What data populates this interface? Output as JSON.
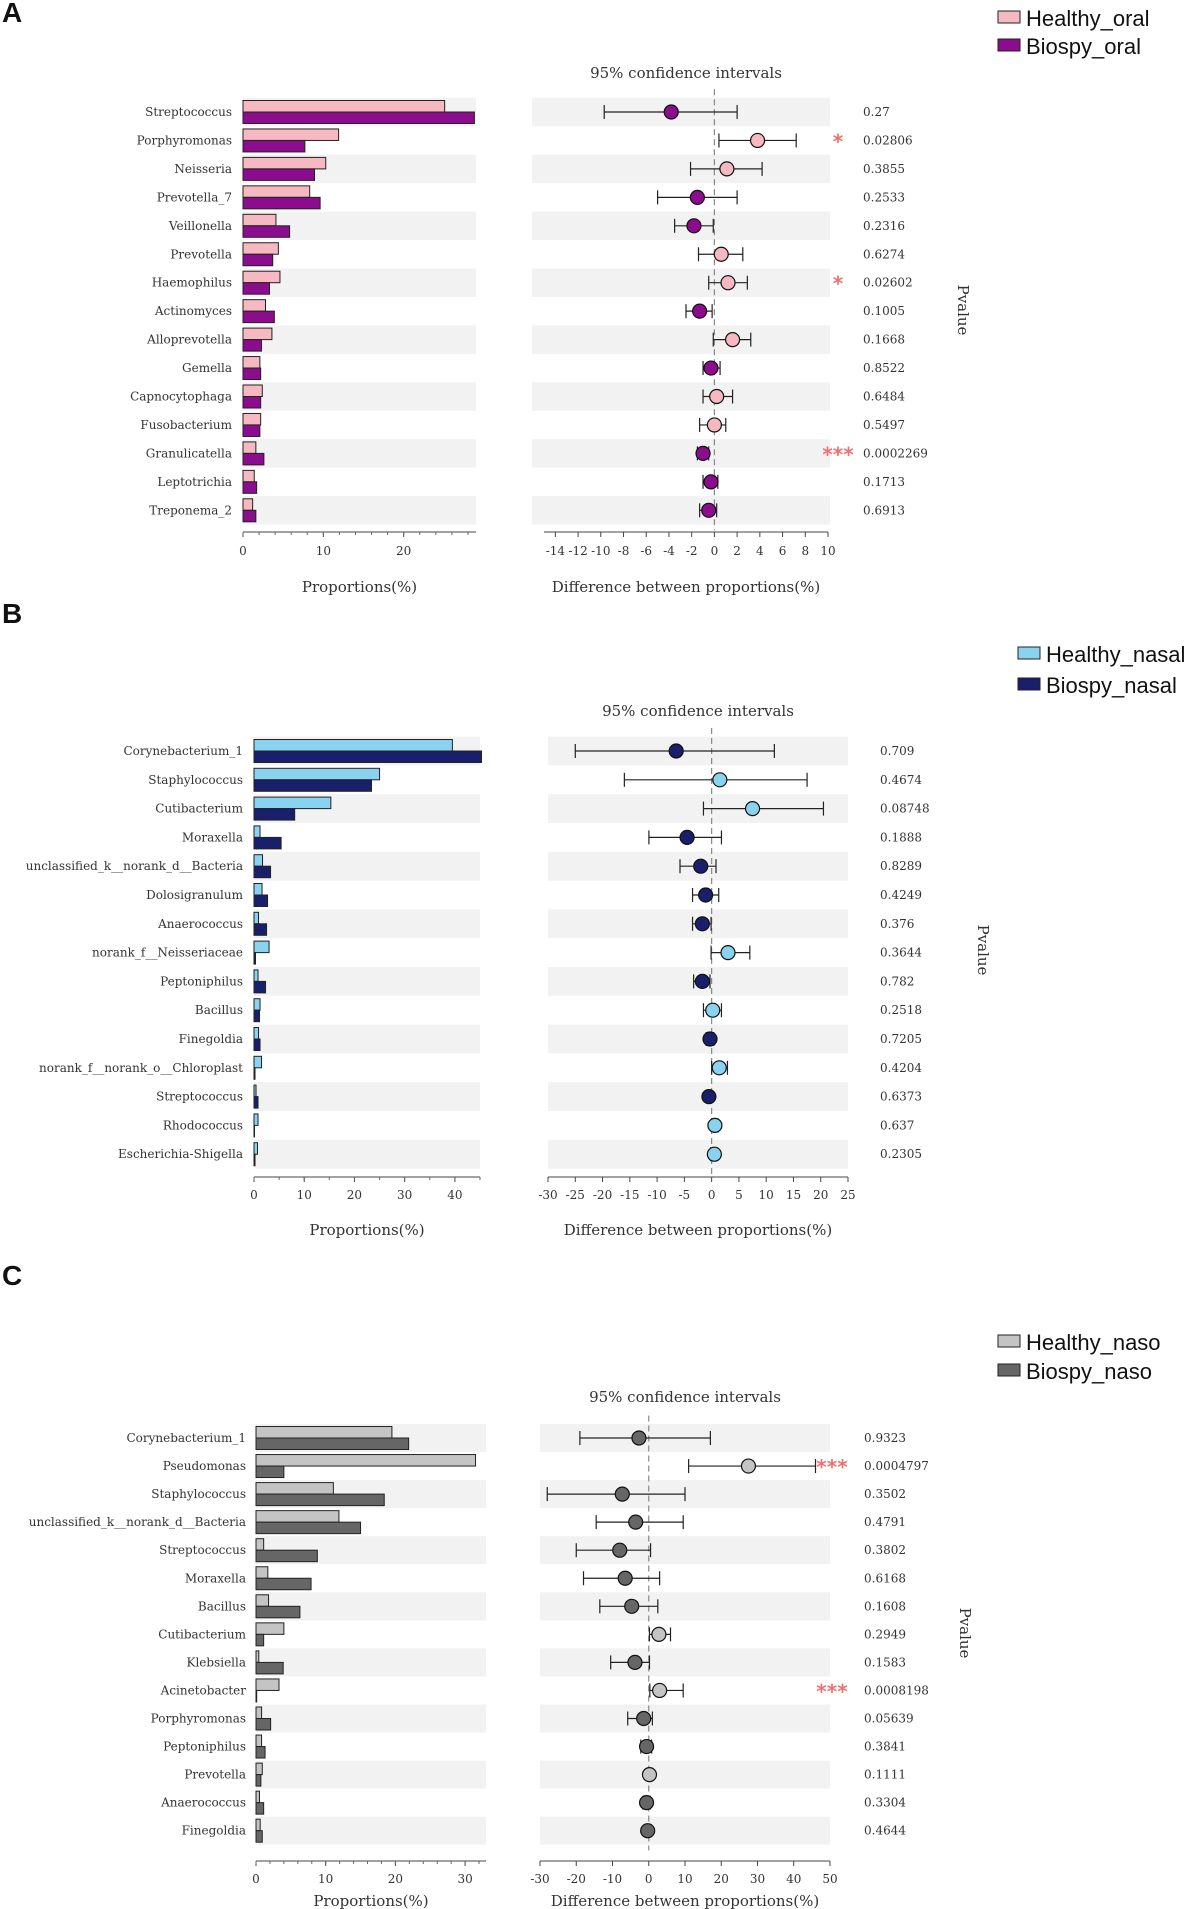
{
  "chart_data": [
    {
      "type": "bar",
      "panel_label": "A",
      "legend": [
        "Healthy_oral",
        "Biospy_oral"
      ],
      "colors": {
        "healthy": "#F6B8C1",
        "biopsy": "#8B0C8C"
      },
      "ci_title": "95% confidence intervals",
      "xlabel_left": "Proportions(%)",
      "xlabel_right": "Difference between proportions(%)",
      "pvalue_label": "Pvalue",
      "prop_ticks": [
        "0",
        "10",
        "20"
      ],
      "prop_tick_values": [
        0,
        10,
        20
      ],
      "prop_xlim": [
        0,
        29
      ],
      "diff_ticks": [
        "-14",
        "-12",
        "-10",
        "-8",
        "-6",
        "-4",
        "-2",
        "0",
        "2",
        "4",
        "6",
        "8",
        "10"
      ],
      "diff_tick_values": [
        -14,
        -12,
        -10,
        -8,
        -6,
        -4,
        -2,
        0,
        2,
        4,
        6,
        8,
        10
      ],
      "diff_xlim": [
        -15,
        10
      ],
      "categories": [
        "Streptococcus",
        "Porphyromonas",
        "Neisseria",
        "Prevotella_7",
        "Veillonella",
        "Prevotella",
        "Haemophilus",
        "Actinomyces",
        "Alloprevotella",
        "Gemella",
        "Capnocytophaga",
        "Fusobacterium",
        "Granulicatella",
        "Leptotrichia",
        "Treponema_2"
      ],
      "series": [
        {
          "name": "Healthy_oral",
          "values": [
            25.1,
            11.9,
            10.3,
            8.3,
            4.1,
            4.4,
            4.6,
            2.8,
            3.6,
            2.1,
            2.4,
            2.2,
            1.6,
            1.4,
            1.2
          ]
        },
        {
          "name": "Biospy_oral",
          "values": [
            28.8,
            7.7,
            8.9,
            9.6,
            5.8,
            3.7,
            3.3,
            3.9,
            2.3,
            2.2,
            2.2,
            2.1,
            2.6,
            1.7,
            1.6
          ]
        }
      ],
      "diff": [
        -3.8,
        3.8,
        1.1,
        -1.5,
        -1.8,
        0.6,
        1.2,
        -1.3,
        1.6,
        -0.3,
        0.2,
        0.0,
        -1.0,
        -0.3,
        -0.5
      ],
      "ci_low": [
        -9.7,
        0.4,
        -2.1,
        -5.0,
        -3.5,
        -1.4,
        -0.5,
        -2.5,
        -0.1,
        -1.0,
        -1.0,
        -1.3,
        -1.5,
        -1.0,
        -1.3
      ],
      "ci_high": [
        2.0,
        7.2,
        4.2,
        2.0,
        -0.1,
        2.5,
        2.9,
        -0.2,
        3.2,
        0.5,
        1.6,
        1.0,
        -0.5,
        0.3,
        0.2
      ],
      "marker_group": [
        "biopsy",
        "healthy",
        "healthy",
        "biopsy",
        "biopsy",
        "healthy",
        "healthy",
        "biopsy",
        "healthy",
        "biopsy",
        "healthy",
        "healthy",
        "biopsy",
        "biopsy",
        "biopsy"
      ],
      "pvalues": [
        "0.27",
        "0.02806",
        "0.3855",
        "0.2533",
        "0.2316",
        "0.6274",
        "0.02602",
        "0.1005",
        "0.1668",
        "0.8522",
        "0.6484",
        "0.5497",
        "0.0002269",
        "0.1713",
        "0.6913"
      ],
      "significance": [
        "",
        "*",
        "",
        "",
        "",
        "",
        "*",
        "",
        "",
        "",
        "",
        "",
        "***",
        "",
        ""
      ]
    },
    {
      "type": "bar",
      "panel_label": "B",
      "legend": [
        "Healthy_nasal",
        "Biospy_nasal"
      ],
      "colors": {
        "healthy": "#8AD3F0",
        "biopsy": "#1A1F6B"
      },
      "ci_title": "95% confidence intervals",
      "xlabel_left": "Proportions(%)",
      "xlabel_right": "Difference between proportions(%)",
      "pvalue_label": "Pvalue",
      "prop_ticks": [
        "0",
        "10",
        "20",
        "30",
        "40"
      ],
      "prop_tick_values": [
        0,
        10,
        20,
        30,
        40
      ],
      "prop_xlim": [
        0,
        45
      ],
      "diff_ticks": [
        "-30",
        "-25",
        "-20",
        "-15",
        "-10",
        "-5",
        "0",
        "5",
        "10",
        "15",
        "20",
        "25"
      ],
      "diff_tick_values": [
        -30,
        -25,
        -20,
        -15,
        -10,
        -5,
        0,
        5,
        10,
        15,
        20,
        25
      ],
      "diff_xlim": [
        -30,
        25
      ],
      "categories": [
        "Corynebacterium_1",
        "Staphylococcus",
        "Cutibacterium",
        "Moraxella",
        "unclassified_k__norank_d__Bacteria",
        "Dolosigranulum",
        "Anaerococcus",
        "norank_f__Neisseriaceae",
        "Peptoniphilus",
        "Bacillus",
        "Finegoldia",
        "norank_f__norank_o__Chloroplast",
        "Streptococcus",
        "Rhodococcus",
        "Escherichia-Shigella"
      ],
      "series": [
        {
          "name": "Healthy_nasal",
          "values": [
            39.5,
            25.0,
            15.3,
            1.2,
            1.7,
            1.6,
            0.9,
            3.0,
            0.8,
            1.2,
            0.9,
            1.5,
            0.4,
            0.8,
            0.7
          ]
        },
        {
          "name": "Biospy_nasal",
          "values": [
            45.3,
            23.4,
            8.1,
            5.4,
            3.3,
            2.7,
            2.5,
            0.3,
            2.3,
            1.1,
            1.2,
            0.2,
            0.8,
            0.1,
            0.2
          ]
        }
      ],
      "diff": [
        -6.5,
        1.5,
        7.5,
        -4.5,
        -2.0,
        -1.1,
        -1.7,
        3.0,
        -1.7,
        0.2,
        -0.3,
        1.4,
        -0.5,
        0.6,
        0.5
      ],
      "ci_low": [
        -25.0,
        -16.0,
        -1.5,
        -11.5,
        -5.8,
        -3.5,
        -3.5,
        -0.1,
        -3.3,
        -1.5,
        -1.0,
        0.0,
        -1.0,
        0.0,
        -0.2
      ],
      "ci_high": [
        11.5,
        17.5,
        20.5,
        1.8,
        0.8,
        1.3,
        -0.1,
        7.0,
        -0.3,
        1.8,
        0.4,
        2.9,
        -0.1,
        1.2,
        1.0
      ],
      "marker_group": [
        "biopsy",
        "healthy",
        "healthy",
        "biopsy",
        "biopsy",
        "biopsy",
        "biopsy",
        "healthy",
        "biopsy",
        "healthy",
        "biopsy",
        "healthy",
        "biopsy",
        "healthy",
        "healthy"
      ],
      "pvalues": [
        "0.709",
        "0.4674",
        "0.08748",
        "0.1888",
        "0.8289",
        "0.4249",
        "0.376",
        "0.3644",
        "0.782",
        "0.2518",
        "0.7205",
        "0.4204",
        "0.6373",
        "0.637",
        "0.2305"
      ],
      "significance": [
        "",
        "",
        "",
        "",
        "",
        "",
        "",
        "",
        "",
        "",
        "",
        "",
        "",
        "",
        ""
      ]
    },
    {
      "type": "bar",
      "panel_label": "C",
      "legend": [
        "Healthy_naso",
        "Biospy_naso"
      ],
      "colors": {
        "healthy": "#C4C4C4",
        "biopsy": "#666666"
      },
      "ci_title": "95% confidence intervals",
      "xlabel_left": "Proportions(%)",
      "xlabel_right": "Difference between proportions(%)",
      "pvalue_label": "Pvalue",
      "prop_ticks": [
        "0",
        "10",
        "20",
        "30"
      ],
      "prop_tick_values": [
        0,
        10,
        20,
        30
      ],
      "prop_xlim": [
        0,
        33
      ],
      "diff_ticks": [
        "-30",
        "-20",
        "-10",
        "0",
        "10",
        "20",
        "30",
        "40",
        "50"
      ],
      "diff_tick_values": [
        -30,
        -20,
        -10,
        0,
        10,
        20,
        30,
        40,
        50
      ],
      "diff_xlim": [
        -30,
        50
      ],
      "categories": [
        "Corynebacterium_1",
        "Pseudomonas",
        "Staphylococcus",
        "unclassified_k__norank_d__Bacteria",
        "Streptococcus",
        "Moraxella",
        "Bacillus",
        "Cutibacterium",
        "Klebsiella",
        "Acinetobacter",
        "Porphyromonas",
        "Peptoniphilus",
        "Prevotella",
        "Anaerococcus",
        "Finegoldia"
      ],
      "series": [
        {
          "name": "Healthy_naso",
          "values": [
            19.5,
            31.5,
            11.1,
            11.9,
            1.1,
            1.7,
            1.8,
            4.0,
            0.4,
            3.3,
            0.8,
            0.8,
            0.9,
            0.5,
            0.6
          ]
        },
        {
          "name": "Biospy_naso",
          "values": [
            21.9,
            4.0,
            18.4,
            15.0,
            8.8,
            7.9,
            6.3,
            1.1,
            3.9,
            0.1,
            2.1,
            1.3,
            0.7,
            1.1,
            0.9
          ]
        }
      ],
      "diff": [
        -2.7,
        27.5,
        -7.3,
        -3.6,
        -8.0,
        -6.5,
        -4.7,
        2.8,
        -3.8,
        3.0,
        -1.4,
        -0.6,
        0.2,
        -0.6,
        -0.3
      ],
      "ci_low": [
        -19.0,
        11.0,
        -28.0,
        -14.5,
        -20.0,
        -18.0,
        -13.5,
        0.2,
        -10.5,
        0.3,
        -5.8,
        -2.2,
        -0.4,
        -1.6,
        -1.0
      ],
      "ci_high": [
        17.0,
        46.0,
        10.0,
        9.5,
        0.5,
        3.0,
        2.5,
        6.0,
        0.2,
        9.5,
        1.0,
        0.8,
        0.9,
        0.4,
        0.3
      ],
      "marker_group": [
        "biopsy",
        "healthy",
        "biopsy",
        "biopsy",
        "biopsy",
        "biopsy",
        "biopsy",
        "healthy",
        "biopsy",
        "healthy",
        "biopsy",
        "biopsy",
        "healthy",
        "biopsy",
        "biopsy"
      ],
      "pvalues": [
        "0.9323",
        "0.0004797",
        "0.3502",
        "0.4791",
        "0.3802",
        "0.6168",
        "0.1608",
        "0.2949",
        "0.1583",
        "0.0008198",
        "0.05639",
        "0.3841",
        "0.1111",
        "0.3304",
        "0.4644"
      ],
      "significance": [
        "",
        "***",
        "",
        "",
        "",
        "",
        "",
        "",
        "",
        "***",
        "",
        "",
        "",
        "",
        ""
      ]
    }
  ]
}
